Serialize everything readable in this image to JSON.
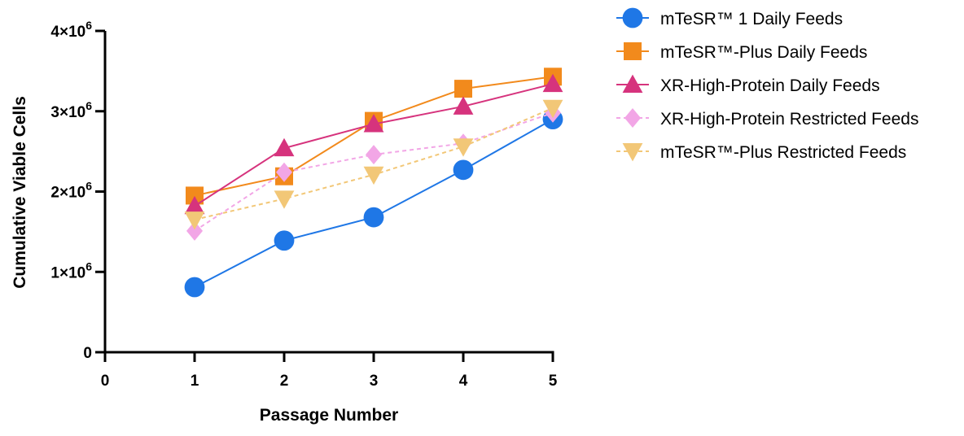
{
  "chart_data": {
    "type": "line",
    "xlabel": "Passage Number",
    "ylabel": "Cumulative Viable Cells",
    "xlim": [
      0,
      5
    ],
    "ylim": [
      0,
      4000000
    ],
    "x_ticks": [
      "0",
      "1",
      "2",
      "3",
      "4",
      "5"
    ],
    "y_ticks": [
      {
        "value": 0,
        "base": "0",
        "exp": ""
      },
      {
        "value": 1000000,
        "base": "1×10",
        "exp": "6"
      },
      {
        "value": 2000000,
        "base": "2×10",
        "exp": "6"
      },
      {
        "value": 3000000,
        "base": "3×10",
        "exp": "6"
      },
      {
        "value": 4000000,
        "base": "4×10",
        "exp": "6"
      }
    ],
    "grid": false,
    "legend_position": "top-right",
    "x": [
      1,
      2,
      3,
      4,
      5
    ],
    "series": [
      {
        "name": "mTeSR™ 1 Daily Feeds",
        "values": [
          810000,
          1390000,
          1680000,
          2270000,
          2900000
        ],
        "color": "#1f77e6",
        "marker": "circle",
        "dashed": false
      },
      {
        "name": "mTeSR™-Plus Daily Feeds",
        "values": [
          1950000,
          2190000,
          2880000,
          3280000,
          3430000
        ],
        "color": "#f28a1c",
        "marker": "square",
        "dashed": false
      },
      {
        "name": "XR-High-Protein Daily Feeds",
        "values": [
          1820000,
          2540000,
          2840000,
          3060000,
          3340000
        ],
        "color": "#d6337d",
        "marker": "triangle-up",
        "dashed": false
      },
      {
        "name": "XR-High-Protein Restricted Feeds",
        "values": [
          1510000,
          2240000,
          2460000,
          2600000,
          2980000
        ],
        "color": "#f2a6e6",
        "marker": "diamond",
        "dashed": true
      },
      {
        "name": "mTeSR™-Plus Restricted Feeds",
        "values": [
          1650000,
          1910000,
          2210000,
          2560000,
          3040000
        ],
        "color": "#f2c777",
        "marker": "triangle-down",
        "dashed": true
      }
    ]
  }
}
